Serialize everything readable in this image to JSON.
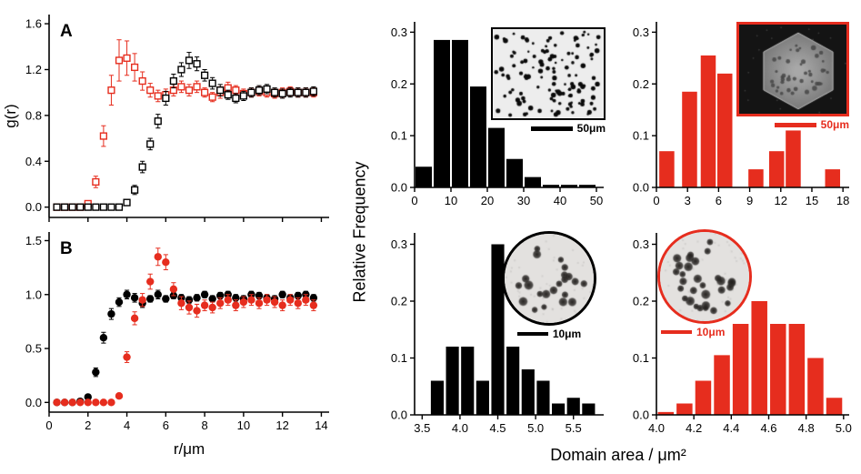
{
  "figure": {
    "background": "#ffffff"
  },
  "colors": {
    "black": "#000000",
    "red": "#e62d1e"
  },
  "right_panels": {
    "y_label": "Relative Frequency",
    "x_label": "Domain area / μm²"
  },
  "insets": {
    "top_left": {
      "scale_label": "50μm",
      "border_color": "#000000"
    },
    "top_right": {
      "scale_label": "50μm",
      "border_color": "#e62d1e"
    },
    "bottom_left": {
      "scale_label": "10μm",
      "border_color": "#000000"
    },
    "bottom_right": {
      "scale_label": "10μm",
      "border_color": "#e62d1e"
    }
  },
  "chart_data": [
    {
      "id": "pair-correlation-A",
      "type": "scatter",
      "panel_label": "A",
      "ylabel": "g(r)",
      "xlabel": "",
      "xlim": [
        0,
        14.4
      ],
      "ylim": [
        -0.09,
        1.68
      ],
      "xticks": [
        0,
        2,
        4,
        6,
        8,
        10,
        12,
        14
      ],
      "x_labels": false,
      "yticks": [
        0,
        0.4,
        0.8,
        1.2,
        1.6
      ],
      "ydec": 1,
      "xdec": 0,
      "x": [
        0.4,
        0.8,
        1.2,
        1.6,
        2,
        2.4,
        2.8,
        3.2,
        3.6,
        4,
        4.4,
        4.8,
        5.2,
        5.6,
        6,
        6.4,
        6.8,
        7.2,
        7.6,
        8,
        8.4,
        8.8,
        9.2,
        9.6,
        10,
        10.4,
        10.8,
        11.2,
        11.6,
        12,
        12.4,
        12.8,
        13.2,
        13.6
      ],
      "series": [
        {
          "name": "red-open-squares",
          "color": "#e62d1e",
          "marker": "open-square",
          "y": [
            0,
            0,
            0,
            0,
            0.03,
            0.22,
            0.62,
            1.02,
            1.28,
            1.3,
            1.22,
            1.1,
            1.02,
            0.97,
            0.98,
            1.02,
            1.05,
            1.02,
            1.05,
            1,
            0.96,
            1,
            1.04,
            1.02,
            0.99,
            1,
            1.01,
            1,
            0.99,
            1,
            1.01,
            1,
            1,
            1
          ],
          "err": [
            0,
            0,
            0,
            0,
            0.02,
            0.05,
            0.09,
            0.13,
            0.18,
            0.15,
            0.12,
            0.08,
            0.06,
            0.05,
            0.05,
            0.05,
            0.05,
            0.05,
            0.05,
            0.04,
            0.04,
            0.05,
            0.05,
            0.04,
            0.04,
            0.04,
            0.04,
            0.04,
            0.04,
            0.04,
            0.04,
            0.04,
            0.04,
            0.04
          ]
        },
        {
          "name": "black-open-squares",
          "color": "#000000",
          "marker": "open-square",
          "y": [
            0,
            0,
            0,
            0,
            0,
            0,
            0,
            0,
            0,
            0.04,
            0.15,
            0.35,
            0.55,
            0.75,
            0.95,
            1.1,
            1.2,
            1.28,
            1.25,
            1.15,
            1.08,
            1.02,
            0.98,
            0.95,
            0.97,
            1,
            1.02,
            1.03,
            1,
            0.99,
            1,
            1,
            1,
            1.01
          ],
          "err": [
            0,
            0,
            0,
            0,
            0,
            0,
            0,
            0,
            0,
            0.02,
            0.04,
            0.05,
            0.05,
            0.06,
            0.06,
            0.06,
            0.06,
            0.07,
            0.06,
            0.05,
            0.05,
            0.05,
            0.04,
            0.04,
            0.04,
            0.04,
            0.04,
            0.04,
            0.04,
            0.04,
            0.04,
            0.04,
            0.04,
            0.04
          ]
        }
      ]
    },
    {
      "id": "pair-correlation-B",
      "type": "scatter",
      "panel_label": "B",
      "ylabel": "",
      "xlabel": "r/μm",
      "xlim": [
        0,
        14.4
      ],
      "ylim": [
        -0.09,
        1.58
      ],
      "xticks": [
        0,
        2,
        4,
        6,
        8,
        10,
        12,
        14
      ],
      "x_labels": true,
      "yticks": [
        0,
        0.5,
        1,
        1.5
      ],
      "ydec": 1,
      "xdec": 0,
      "x": [
        0.4,
        0.8,
        1.2,
        1.6,
        2,
        2.4,
        2.8,
        3.2,
        3.6,
        4,
        4.4,
        4.8,
        5.2,
        5.6,
        6,
        6.4,
        6.8,
        7.2,
        7.6,
        8,
        8.4,
        8.8,
        9.2,
        9.6,
        10,
        10.4,
        10.8,
        11.2,
        11.6,
        12,
        12.4,
        12.8,
        13.2,
        13.6
      ],
      "series": [
        {
          "name": "black-filled-circles",
          "color": "#000000",
          "marker": "filled-circle",
          "y": [
            0,
            0,
            0,
            0.01,
            0.05,
            0.28,
            0.6,
            0.82,
            0.93,
            1,
            0.97,
            0.92,
            0.96,
            1,
            0.96,
            0.99,
            0.97,
            0.95,
            0.97,
            1,
            0.96,
            0.99,
            1,
            0.97,
            0.96,
            1,
            0.99,
            0.97,
            0.96,
            1,
            0.97,
            0.99,
            1,
            0.97
          ],
          "err": [
            0,
            0,
            0,
            0.01,
            0.02,
            0.04,
            0.05,
            0.05,
            0.04,
            0.04,
            0.04,
            0.04,
            0.03,
            0.04,
            0.03,
            0.03,
            0.03,
            0.03,
            0.03,
            0.03,
            0.03,
            0.03,
            0.03,
            0.03,
            0.03,
            0.03,
            0.03,
            0.03,
            0.03,
            0.03,
            0.03,
            0.03,
            0.03,
            0.03
          ]
        },
        {
          "name": "red-filled-circles",
          "color": "#e62d1e",
          "marker": "filled-circle",
          "y": [
            0,
            0,
            0,
            0,
            0,
            0,
            0,
            0,
            0.06,
            0.42,
            0.78,
            0.95,
            1.12,
            1.35,
            1.3,
            1.05,
            0.92,
            0.88,
            0.85,
            0.9,
            0.88,
            0.92,
            0.95,
            0.9,
            0.93,
            0.95,
            0.92,
            0.95,
            0.93,
            0.9,
            0.95,
            0.92,
            0.95,
            0.9
          ],
          "err": [
            0,
            0,
            0,
            0,
            0,
            0,
            0,
            0,
            0.02,
            0.05,
            0.06,
            0.06,
            0.07,
            0.08,
            0.07,
            0.06,
            0.06,
            0.06,
            0.06,
            0.05,
            0.05,
            0.05,
            0.05,
            0.05,
            0.05,
            0.05,
            0.05,
            0.05,
            0.05,
            0.05,
            0.05,
            0.05,
            0.05,
            0.05
          ]
        }
      ]
    },
    {
      "id": "histogram-black-large-domains",
      "type": "bar",
      "color": "#000000",
      "xlim": [
        0,
        52
      ],
      "ylim": [
        0,
        0.32
      ],
      "xticks": [
        0,
        10,
        20,
        30,
        40,
        50
      ],
      "yticks": [
        0,
        0.1,
        0.2,
        0.3
      ],
      "xdec": 0,
      "ydec": 1,
      "bin_centers": [
        2.5,
        7.5,
        12.5,
        17.5,
        22.5,
        27.5,
        32.5,
        37.5,
        42.5,
        47.5
      ],
      "values": [
        0.04,
        0.285,
        0.285,
        0.195,
        0.115,
        0.055,
        0.02,
        0.005,
        0.005,
        0.005
      ],
      "bar_width": 4.5
    },
    {
      "id": "histogram-red-large-domains",
      "type": "bar",
      "color": "#e62d1e",
      "xlim": [
        0,
        18.6
      ],
      "ylim": [
        0,
        0.32
      ],
      "xticks": [
        0,
        3,
        6,
        9,
        12,
        15,
        18
      ],
      "yticks": [
        0,
        0.1,
        0.2,
        0.3
      ],
      "xdec": 0,
      "ydec": 1,
      "bin_centers": [
        1,
        3.2,
        5,
        6.6,
        9.6,
        11.6,
        13.2,
        17
      ],
      "values": [
        0.07,
        0.185,
        0.255,
        0.22,
        0.035,
        0.07,
        0.11,
        0.035
      ],
      "bar_width": 1.45
    },
    {
      "id": "histogram-black-small-domains",
      "type": "bar",
      "color": "#000000",
      "xlim": [
        3.4,
        5.9
      ],
      "ylim": [
        0,
        0.32
      ],
      "xticks": [
        3.5,
        4,
        4.5,
        5,
        5.5
      ],
      "yticks": [
        0,
        0.1,
        0.2,
        0.3
      ],
      "xdec": 1,
      "ydec": 1,
      "bin_centers": [
        3.7,
        3.9,
        4.1,
        4.3,
        4.5,
        4.7,
        4.9,
        5.1,
        5.3,
        5.5,
        5.7
      ],
      "values": [
        0.06,
        0.12,
        0.12,
        0.06,
        0.3,
        0.12,
        0.08,
        0.06,
        0.02,
        0.03,
        0.02
      ],
      "bar_width": 0.17
    },
    {
      "id": "histogram-red-small-domains",
      "type": "bar",
      "color": "#e62d1e",
      "xlim": [
        4,
        5.03
      ],
      "ylim": [
        0,
        0.32
      ],
      "xticks": [
        4,
        4.2,
        4.4,
        4.6,
        4.8,
        5
      ],
      "yticks": [
        0,
        0.1,
        0.2,
        0.3
      ],
      "xdec": 1,
      "ydec": 1,
      "bin_centers": [
        4.05,
        4.15,
        4.25,
        4.35,
        4.45,
        4.55,
        4.65,
        4.75,
        4.85,
        4.95
      ],
      "values": [
        0.005,
        0.02,
        0.06,
        0.105,
        0.16,
        0.2,
        0.16,
        0.16,
        0.1,
        0.03
      ],
      "bar_width": 0.085
    }
  ]
}
